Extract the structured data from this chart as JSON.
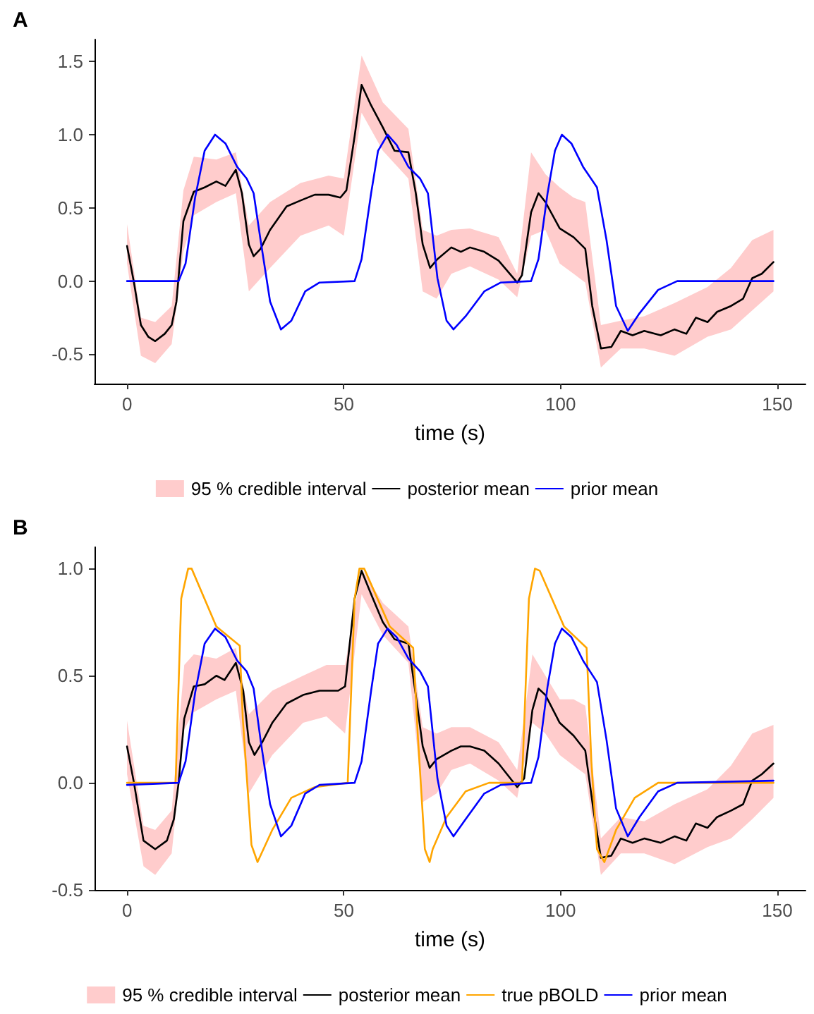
{
  "chart_data": [
    {
      "type": "line",
      "title": "A",
      "xlabel": "time (s)",
      "xlim": [
        -7.5,
        156.5
      ],
      "xticks": [
        0,
        50,
        100,
        150
      ],
      "ylim": [
        -0.7,
        1.65
      ],
      "yticks": [
        {
          "value": -0.5,
          "label": "-0.5"
        },
        {
          "value": 0,
          "label": "0.0"
        },
        {
          "value": 0.5,
          "label": "0.5"
        },
        {
          "value": 1,
          "label": "1.0"
        },
        {
          "value": 1.5,
          "label": "1.5"
        }
      ],
      "grid": false,
      "legend": "bottom",
      "marker": "none",
      "series": [
        {
          "name": "95 % credible interval",
          "type": "area",
          "color": "#ffcccc",
          "values": [
            null,
            null,
            null,
            null,
            null,
            null,
            null,
            null,
            null,
            null,
            null,
            null,
            null,
            null,
            null,
            null,
            null,
            null,
            null,
            null,
            null,
            null,
            null,
            null,
            null,
            null,
            null,
            null,
            null,
            null,
            null,
            null,
            null,
            null,
            null
          ],
          "x": [
            0,
            3.2,
            6.5,
            10.3,
            13,
            15.4,
            20.6,
            25.1,
            28.1,
            33,
            40,
            46.5,
            50,
            54.1,
            59,
            64.9,
            68.2,
            71.4,
            74.8,
            79.1,
            85.7,
            90,
            93.2,
            96.5,
            99.8,
            103,
            105.7,
            109.3,
            113.9,
            119.3,
            126.3,
            133.9,
            139.3,
            144.2,
            149.1
          ],
          "lower": [
            0.12,
            -0.51,
            -0.56,
            -0.43,
            0.2,
            0.45,
            0.54,
            0.6,
            -0.07,
            0.09,
            0.31,
            0.38,
            0.31,
            1.15,
            0.89,
            0.7,
            -0.07,
            -0.12,
            0.05,
            0.1,
            0.01,
            -0.11,
            0.31,
            0.35,
            0.12,
            0.05,
            -0.01,
            -0.59,
            -0.46,
            -0.46,
            -0.51,
            -0.38,
            -0.33,
            -0.2,
            -0.07
          ],
          "upper": [
            0.39,
            -0.25,
            -0.28,
            -0.17,
            0.62,
            0.85,
            0.83,
            0.88,
            0.38,
            0.54,
            0.67,
            0.72,
            0.7,
            1.54,
            1.22,
            1.04,
            0.35,
            0.31,
            0.35,
            0.36,
            0.3,
            0.05,
            0.88,
            0.73,
            0.64,
            0.57,
            0.54,
            -0.3,
            -0.27,
            -0.24,
            -0.15,
            -0.04,
            0.09,
            0.28,
            0.35
          ]
        },
        {
          "name": "posterior mean",
          "color": "#000000",
          "x": [
            0,
            1.6,
            3.2,
            4.9,
            6.5,
            8.7,
            10.3,
            11.4,
            13,
            15.4,
            17.9,
            20.6,
            22.7,
            25.1,
            26.5,
            28.1,
            29.2,
            30.8,
            33,
            36.8,
            40,
            43.3,
            46.5,
            49.2,
            50.6,
            52.5,
            54.1,
            56.3,
            59,
            61.7,
            64.9,
            66.6,
            68.2,
            69.9,
            71.6,
            74.8,
            77,
            79.1,
            82.4,
            85.7,
            90,
            91.1,
            93.2,
            94.9,
            96.5,
            99.8,
            103,
            105.7,
            107.3,
            109.3,
            111.7,
            113.9,
            116.6,
            119.3,
            123.1,
            126.3,
            129,
            131.2,
            133.9,
            136.1,
            139.3,
            142.1,
            144.2,
            146.4,
            149.1
          ],
          "values": [
            0.24,
            -0.01,
            -0.3,
            -0.38,
            -0.41,
            -0.36,
            -0.3,
            -0.14,
            0.41,
            0.61,
            0.64,
            0.68,
            0.65,
            0.76,
            0.6,
            0.25,
            0.17,
            0.22,
            0.35,
            0.51,
            0.55,
            0.59,
            0.59,
            0.57,
            0.62,
            0.99,
            1.34,
            1.2,
            1.05,
            0.89,
            0.88,
            0.6,
            0.25,
            0.09,
            0.15,
            0.23,
            0.2,
            0.23,
            0.2,
            0.14,
            -0.01,
            0.04,
            0.47,
            0.6,
            0.54,
            0.36,
            0.3,
            0.22,
            -0.17,
            -0.46,
            -0.45,
            -0.34,
            -0.37,
            -0.34,
            -0.37,
            -0.33,
            -0.36,
            -0.25,
            -0.28,
            -0.21,
            -0.17,
            -0.12,
            0.02,
            0.05,
            0.13
          ]
        },
        {
          "name": "prior mean",
          "color": "#0000ff",
          "x": [
            0,
            11.9,
            13.5,
            15.7,
            17.9,
            20.3,
            22.7,
            25.4,
            27.6,
            29.2,
            30.8,
            33,
            35.5,
            37.9,
            41.1,
            44.4,
            52.5,
            54.1,
            56.3,
            57.9,
            60.1,
            62.2,
            64.9,
            67.6,
            69.4,
            71.6,
            73.7,
            75.3,
            78.1,
            82.4,
            86.2,
            93.2,
            94.9,
            97,
            98.7,
            100.3,
            102.5,
            105.2,
            108.4,
            110.6,
            112.8,
            115.5,
            118.2,
            122.5,
            126.9,
            149.1
          ],
          "values": [
            0,
            0,
            0.12,
            0.57,
            0.89,
            1,
            0.94,
            0.78,
            0.7,
            0.6,
            0.28,
            -0.14,
            -0.33,
            -0.27,
            -0.07,
            -0.01,
            0,
            0.15,
            0.6,
            0.89,
            1,
            0.93,
            0.78,
            0.7,
            0.6,
            0.02,
            -0.27,
            -0.33,
            -0.24,
            -0.07,
            -0.01,
            0,
            0.15,
            0.6,
            0.89,
            1,
            0.94,
            0.78,
            0.64,
            0.28,
            -0.17,
            -0.34,
            -0.22,
            -0.06,
            0,
            0
          ]
        }
      ]
    },
    {
      "type": "line",
      "title": "B",
      "xlabel": "time (s)",
      "xlim": [
        -7.5,
        156.5
      ],
      "xticks": [
        0,
        50,
        100,
        150
      ],
      "ylim": [
        -0.5,
        1.1
      ],
      "yticks": [
        {
          "value": -0.5,
          "label": "-0.5"
        },
        {
          "value": 0,
          "label": "0.0"
        },
        {
          "value": 0.5,
          "label": "0.5"
        },
        {
          "value": 1,
          "label": "1.0"
        }
      ],
      "grid": false,
      "legend": "bottom",
      "marker": "none",
      "series": [
        {
          "name": "95 % credible interval",
          "type": "area",
          "color": "#ffcccc",
          "values": [
            null,
            null,
            null,
            null,
            null,
            null,
            null,
            null,
            null,
            null,
            null,
            null,
            null,
            null,
            null,
            null,
            null,
            null,
            null,
            null,
            null,
            null,
            null,
            null,
            null,
            null,
            null,
            null,
            null,
            null,
            null,
            null,
            null,
            null,
            null
          ],
          "x": [
            0,
            3.8,
            6.5,
            10.3,
            13.2,
            15.4,
            20.6,
            25.1,
            28.1,
            33.5,
            40.6,
            46,
            50.3,
            54.1,
            59,
            64.9,
            68.2,
            71.4,
            74.8,
            79.1,
            85.7,
            90,
            93.5,
            96.5,
            99.8,
            103,
            105.7,
            109.3,
            113.9,
            119.3,
            126.3,
            133.9,
            139.3,
            144.2,
            149.1
          ],
          "lower": [
            0.04,
            -0.39,
            -0.43,
            -0.33,
            0.25,
            0.33,
            0.39,
            0.43,
            -0.05,
            0.13,
            0.28,
            0.31,
            0.23,
            0.88,
            0.69,
            0.56,
            -0.09,
            -0.05,
            0.06,
            0.09,
            0.01,
            -0.07,
            0.28,
            0.23,
            0.13,
            0.08,
            0.04,
            -0.43,
            -0.33,
            -0.33,
            -0.38,
            -0.3,
            -0.26,
            -0.17,
            -0.07
          ],
          "upper": [
            0.29,
            -0.2,
            -0.22,
            -0.13,
            0.55,
            0.6,
            0.58,
            0.63,
            0.32,
            0.43,
            0.5,
            0.55,
            0.55,
            1,
            0.84,
            0.73,
            0.26,
            0.23,
            0.26,
            0.26,
            0.19,
            0.06,
            0.6,
            0.5,
            0.39,
            0.39,
            0.36,
            -0.26,
            -0.16,
            -0.18,
            -0.1,
            -0.03,
            0.08,
            0.23,
            0.27
          ]
        },
        {
          "name": "posterior mean",
          "color": "#000000",
          "x": [
            0,
            1.6,
            3.8,
            6.5,
            9.2,
            10.8,
            11.9,
            13.2,
            15.4,
            17.9,
            20.6,
            22.5,
            25.1,
            26.8,
            28.1,
            29.4,
            31.2,
            33.5,
            36.8,
            40.6,
            44.4,
            48.7,
            50.3,
            52.5,
            54.1,
            56.3,
            59,
            61.7,
            64.9,
            66.6,
            68.2,
            69.8,
            71.4,
            74.8,
            77,
            79.1,
            82.4,
            85.7,
            90,
            91.6,
            93.5,
            94.9,
            96.5,
            99.8,
            103,
            105.7,
            107.6,
            109.3,
            111.7,
            113.9,
            116.6,
            119.3,
            123.1,
            126.3,
            129,
            131.2,
            133.9,
            136.1,
            139.3,
            142.1,
            144.2,
            146.4,
            149.1
          ],
          "values": [
            0.17,
            0,
            -0.27,
            -0.31,
            -0.27,
            -0.17,
            0,
            0.3,
            0.45,
            0.46,
            0.5,
            0.48,
            0.56,
            0.43,
            0.19,
            0.13,
            0.19,
            0.28,
            0.37,
            0.41,
            0.43,
            0.43,
            0.45,
            0.86,
            0.99,
            0.88,
            0.75,
            0.67,
            0.65,
            0.41,
            0.17,
            0.07,
            0.11,
            0.15,
            0.17,
            0.17,
            0.15,
            0.09,
            -0.02,
            0.02,
            0.34,
            0.44,
            0.41,
            0.28,
            0.22,
            0.15,
            -0.13,
            -0.35,
            -0.34,
            -0.26,
            -0.28,
            -0.26,
            -0.28,
            -0.25,
            -0.27,
            -0.19,
            -0.21,
            -0.16,
            -0.13,
            -0.1,
            0.01,
            0.04,
            0.09
          ]
        },
        {
          "name": "true pBOLD",
          "color": "#ffa500",
          "x": [
            0,
            11.2,
            12.5,
            14.1,
            14.9,
            20.6,
            26,
            26.7,
            28.7,
            30.1,
            33.5,
            37.9,
            43.3,
            50.9,
            52.5,
            53.6,
            54.7,
            60.6,
            66,
            67.1,
            68.7,
            69.8,
            70.5,
            73.7,
            78.1,
            83.5,
            91.1,
            92.7,
            94.1,
            95.2,
            100.8,
            106,
            107.1,
            108.4,
            110.1,
            112.8,
            117.1,
            122.5,
            149.1
          ],
          "values": [
            0,
            0,
            0.86,
            1,
            1,
            0.73,
            0.64,
            0.3,
            -0.29,
            -0.37,
            -0.22,
            -0.07,
            -0.02,
            0,
            0.86,
            1,
            1,
            0.73,
            0.63,
            0.21,
            -0.31,
            -0.37,
            -0.31,
            -0.16,
            -0.04,
            0,
            0,
            0.86,
            1,
            0.99,
            0.73,
            0.63,
            0.1,
            -0.31,
            -0.37,
            -0.22,
            -0.07,
            0,
            0
          ]
        },
        {
          "name": "prior mean",
          "color": "#0000ff",
          "x": [
            0,
            11.9,
            13.5,
            15.7,
            17.9,
            20.3,
            22.7,
            25.4,
            27.6,
            29.2,
            30.8,
            33,
            35.5,
            37.9,
            41.1,
            44.4,
            52.5,
            54.1,
            56.3,
            57.9,
            60.1,
            62.2,
            64.9,
            67.6,
            69.4,
            71.6,
            73.7,
            75.3,
            78.1,
            82.4,
            86.2,
            93.2,
            94.9,
            97,
            98.7,
            100.3,
            102.5,
            105.2,
            108.4,
            110.6,
            112.8,
            115.5,
            118.2,
            122.5,
            126.9,
            149.1
          ],
          "values": [
            -0.01,
            0,
            0.1,
            0.42,
            0.65,
            0.72,
            0.68,
            0.57,
            0.52,
            0.44,
            0.2,
            -0.1,
            -0.25,
            -0.2,
            -0.05,
            -0.01,
            0,
            0.1,
            0.43,
            0.65,
            0.72,
            0.68,
            0.58,
            0.52,
            0.45,
            0.02,
            -0.2,
            -0.25,
            -0.17,
            -0.05,
            -0.01,
            0,
            0.12,
            0.45,
            0.65,
            0.72,
            0.68,
            0.57,
            0.47,
            0.2,
            -0.12,
            -0.25,
            -0.16,
            -0.04,
            0,
            0.01
          ]
        }
      ]
    }
  ]
}
